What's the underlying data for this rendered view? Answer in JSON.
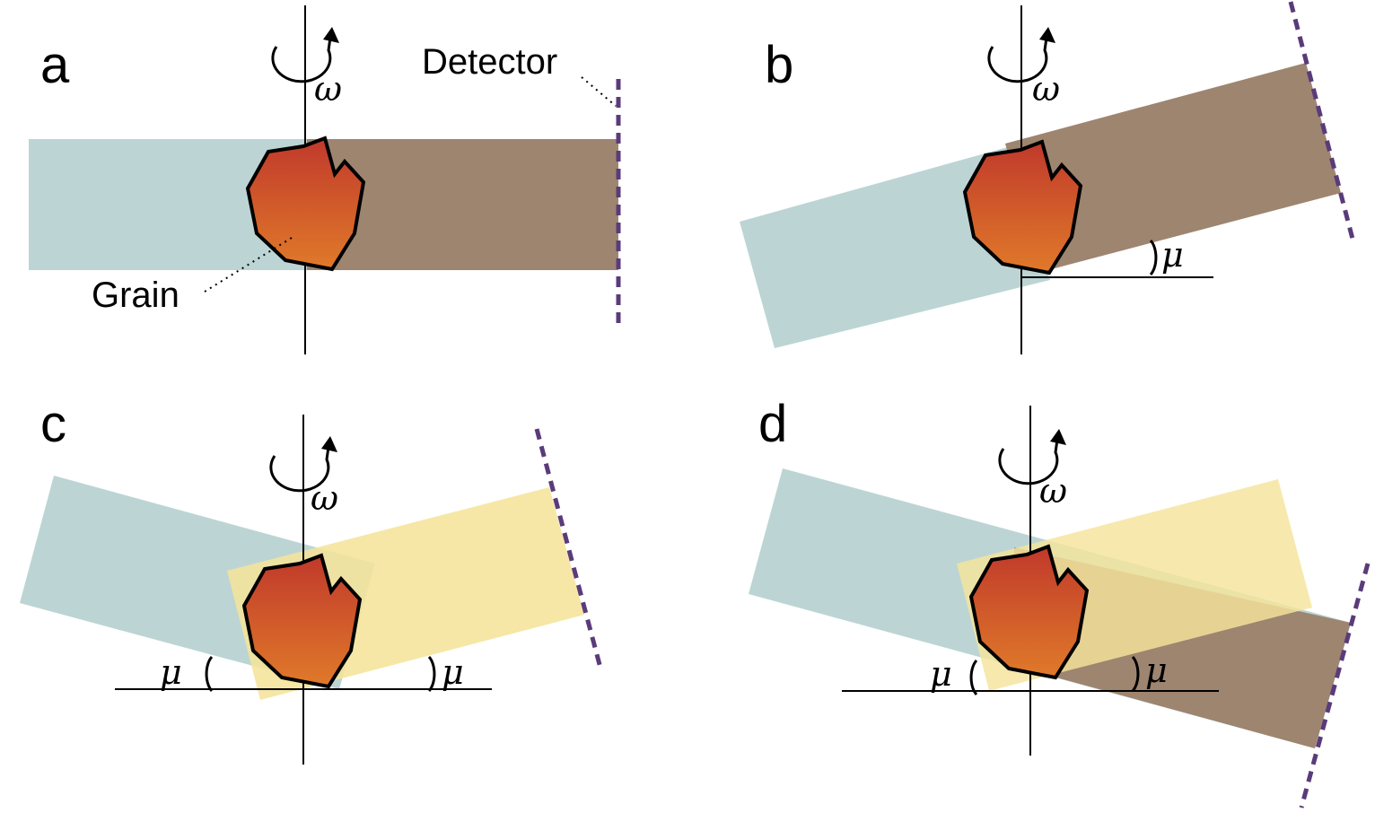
{
  "panels": {
    "a": {
      "letter": "a",
      "omega": "ω",
      "detector_label": "Detector",
      "grain_label": "Grain"
    },
    "b": {
      "letter": "b",
      "omega": "ω",
      "mu_right": "μ"
    },
    "c": {
      "letter": "c",
      "omega": "ω",
      "mu_left": "μ",
      "mu_right": "μ"
    },
    "d": {
      "letter": "d",
      "omega": "ω",
      "mu_left": "μ",
      "mu_right": "μ"
    }
  },
  "colors": {
    "incident_beam": "#bcd5d4",
    "diffracted_beam_on_detector": "#9e8570",
    "diffracted_beam_off_detector": "#f5e49b",
    "grain_top": "#c0392b",
    "grain_bottom": "#e07a2a",
    "detector": "#5a3b7a"
  }
}
